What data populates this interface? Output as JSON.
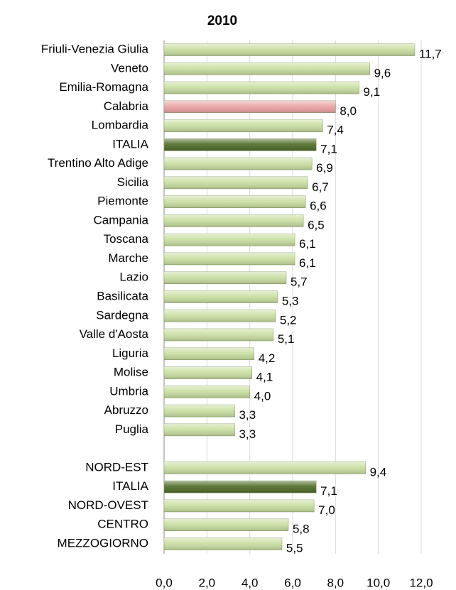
{
  "chart_data": {
    "type": "bar",
    "orientation": "horizontal",
    "title": "2010",
    "categories": [
      "Friuli-Venezia Giulia",
      "Veneto",
      "Emilia-Romagna",
      "Calabria",
      "Lombardia",
      "ITALIA",
      "Trentino Alto Adige",
      "Sicilia",
      "Piemonte",
      "Campania",
      "Toscana",
      "Marche",
      "Lazio",
      "Basilicata",
      "Sardegna",
      "Valle d'Aosta",
      "Liguria",
      "Molise",
      "Umbria",
      "Abruzzo",
      "Puglia",
      null,
      "NORD-EST",
      "ITALIA",
      "NORD-OVEST",
      "CENTRO",
      "MEZZOGIORNO"
    ],
    "values": [
      11.7,
      9.6,
      9.1,
      8.0,
      7.4,
      7.1,
      6.9,
      6.7,
      6.6,
      6.5,
      6.1,
      6.1,
      5.7,
      5.3,
      5.2,
      5.1,
      4.2,
      4.1,
      4.0,
      3.3,
      3.3,
      null,
      9.4,
      7.1,
      7.0,
      5.8,
      5.5
    ],
    "value_labels": [
      "11,7",
      "9,6",
      "9,1",
      "8,0",
      "7,4",
      "7,1",
      "6,9",
      "6,7",
      "6,6",
      "6,5",
      "6,1",
      "6,1",
      "5,7",
      "5,3",
      "5,2",
      "5,1",
      "4,2",
      "4,1",
      "4,0",
      "3,3",
      "3,3",
      null,
      "9,4",
      "7,1",
      "7,0",
      "5,8",
      "5,5"
    ],
    "colors": [
      "#c9dea0",
      "#c9dea0",
      "#c9dea0",
      "#eba3a3",
      "#c9dea0",
      "#4e6b26",
      "#c9dea0",
      "#c9dea0",
      "#c9dea0",
      "#c9dea0",
      "#c9dea0",
      "#c9dea0",
      "#c9dea0",
      "#c9dea0",
      "#c9dea0",
      "#c9dea0",
      "#c9dea0",
      "#c9dea0",
      "#c9dea0",
      "#c9dea0",
      "#c9dea0",
      null,
      "#c9dea0",
      "#4e6b26",
      "#c9dea0",
      "#c9dea0",
      "#c9dea0"
    ],
    "xlim": [
      0,
      12
    ],
    "xticks": [
      {
        "value": 0,
        "label": "0,0"
      },
      {
        "value": 2,
        "label": "2,0"
      },
      {
        "value": 4,
        "label": "4,0"
      },
      {
        "value": 6,
        "label": "6,0"
      },
      {
        "value": 8,
        "label": "8,0"
      },
      {
        "value": 10,
        "label": "10,0"
      },
      {
        "value": 12,
        "label": "12,0"
      }
    ],
    "grid": true
  }
}
